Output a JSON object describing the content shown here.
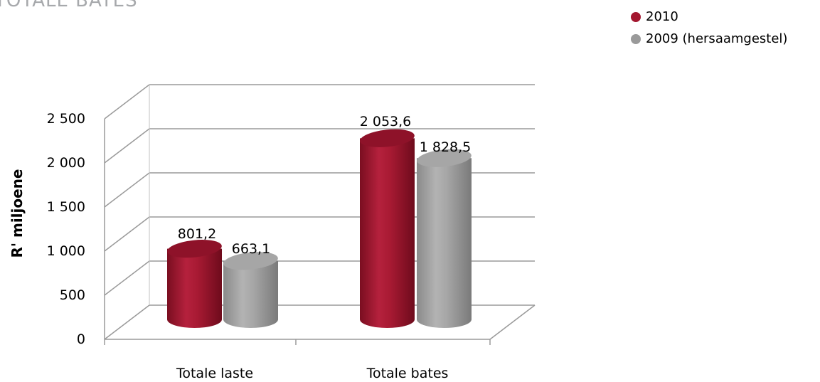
{
  "chart_data": {
    "type": "bar",
    "title": "TOTALE BATES",
    "ylabel": "R' miljoene",
    "xlabel": "",
    "categories": [
      "Totale laste",
      "Totale bates"
    ],
    "series": [
      {
        "name": "2010",
        "values": [
          801.2,
          2053.6
        ],
        "labels": [
          "801,2",
          "2 053,6"
        ],
        "color": "#a3162f"
      },
      {
        "name": "2009 (hersaamgestel)",
        "values": [
          663.1,
          1828.5
        ],
        "labels": [
          "663,1",
          "1 828,5"
        ],
        "color": "#9a9a9a"
      }
    ],
    "ylim": [
      0,
      2500
    ],
    "yticks": [
      0,
      500,
      1000,
      1500,
      2000,
      2500
    ],
    "ytick_labels": [
      "0",
      "500",
      "1 000",
      "1 500",
      "2 000",
      "2 500"
    ],
    "grid": true,
    "legend_position": "top-right"
  }
}
